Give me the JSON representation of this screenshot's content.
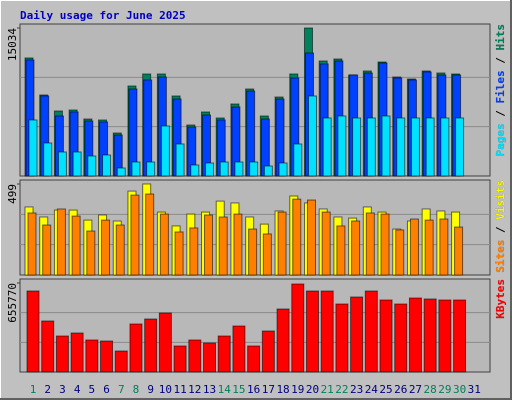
{
  "chart_data": {
    "type": "bar",
    "title": "Daily usage for June 2025",
    "categories": [
      "1",
      "2",
      "3",
      "4",
      "5",
      "6",
      "7",
      "8",
      "9",
      "10",
      "11",
      "12",
      "13",
      "14",
      "15",
      "16",
      "17",
      "18",
      "19",
      "20",
      "21",
      "22",
      "23",
      "24",
      "25",
      "26",
      "27",
      "28",
      "29",
      "30",
      "31"
    ],
    "category_colors": [
      "#00805c",
      "#000080",
      "#000080",
      "#000080",
      "#000080",
      "#000080",
      "#00805c",
      "#00805c",
      "#000080",
      "#000080",
      "#000080",
      "#000080",
      "#000080",
      "#00805c",
      "#00805c",
      "#000080",
      "#000080",
      "#000080",
      "#000080",
      "#000080",
      "#00805c",
      "#00805c",
      "#000080",
      "#000080",
      "#000080",
      "#000080",
      "#000080",
      "#00805c",
      "#00805c",
      "#00805c",
      "#000080"
    ],
    "panels": [
      {
        "ylim": [
          0,
          15034
        ],
        "yticks": [
          15034
        ],
        "series": [
          {
            "name": "Hits",
            "color": "#00805c",
            "values": [
              11990,
              8230,
              6604,
              6706,
              5791,
              5690,
              4369,
              9144,
              10363,
              10363,
              8128,
              5182,
              6502,
              5893,
              7315,
              8839,
              6096,
              8026,
              10363,
              15034,
              11684,
              11887,
              10262,
              10668,
              11582,
              10058,
              9855,
              10668,
              10465,
              10363,
              null
            ]
          },
          {
            "name": "Files",
            "color": "#0040ff",
            "values": [
              11786,
              8128,
              6096,
              6502,
              5588,
              5486,
              4166,
              8839,
              9754,
              10058,
              7823,
              4978,
              6198,
              5690,
              7010,
              8636,
              5791,
              7823,
              9957,
              12497,
              11379,
              11684,
              10262,
              10465,
              11481,
              9957,
              9754,
              10566,
              10262,
              10262,
              null
            ]
          },
          {
            "name": "Pages",
            "color": "#00e0ff",
            "values": [
              5690,
              3353,
              2438,
              2438,
              2032,
              2134,
              813,
              1422,
              1422,
              5080,
              3251,
              1118,
              1321,
              1422,
              1422,
              1422,
              1016,
              1321,
              3251,
              8128,
              5893,
              6096,
              5893,
              5893,
              6096,
              5893,
              5893,
              5893,
              5893,
              5893,
              null
            ]
          }
        ]
      },
      {
        "ylim": [
          0,
          499
        ],
        "yticks": [
          499
        ],
        "series": [
          {
            "name": "Visits",
            "color": "#ffff00",
            "values": [
              373,
              318,
              356,
              356,
              301,
              329,
              296,
              460,
              499,
              345,
              269,
              334,
              345,
              405,
              395,
              318,
              279,
              351,
              433,
              395,
              362,
              318,
              312,
              373,
              345,
              252,
              296,
              362,
              351,
              345,
              null
            ]
          },
          {
            "name": "Sites",
            "color": "#ff8000",
            "values": [
              340,
              274,
              362,
              323,
              241,
              301,
              274,
              438,
              444,
              334,
              236,
              258,
              329,
              318,
              334,
              252,
              225,
              345,
              416,
              411,
              345,
              269,
              296,
              340,
              334,
              247,
              307,
              301,
              307,
              263,
              null
            ]
          }
        ]
      },
      {
        "ylim": [
          0,
          655770
        ],
        "yticks": [
          655770
        ],
        "series": [
          {
            "name": "KBytes",
            "color": "#ff0000",
            "values": [
              596800,
              375800,
              265200,
              287400,
              235800,
              228400,
              154700,
              353700,
              390500,
              434700,
              191600,
              235800,
              213700,
              265200,
              338900,
              191600,
              302100,
              464200,
              648400,
              596800,
              596800,
              501000,
              552600,
              596800,
              530500,
              501000,
              545200,
              537900,
              530500,
              530500,
              null
            ]
          }
        ]
      }
    ]
  }
}
